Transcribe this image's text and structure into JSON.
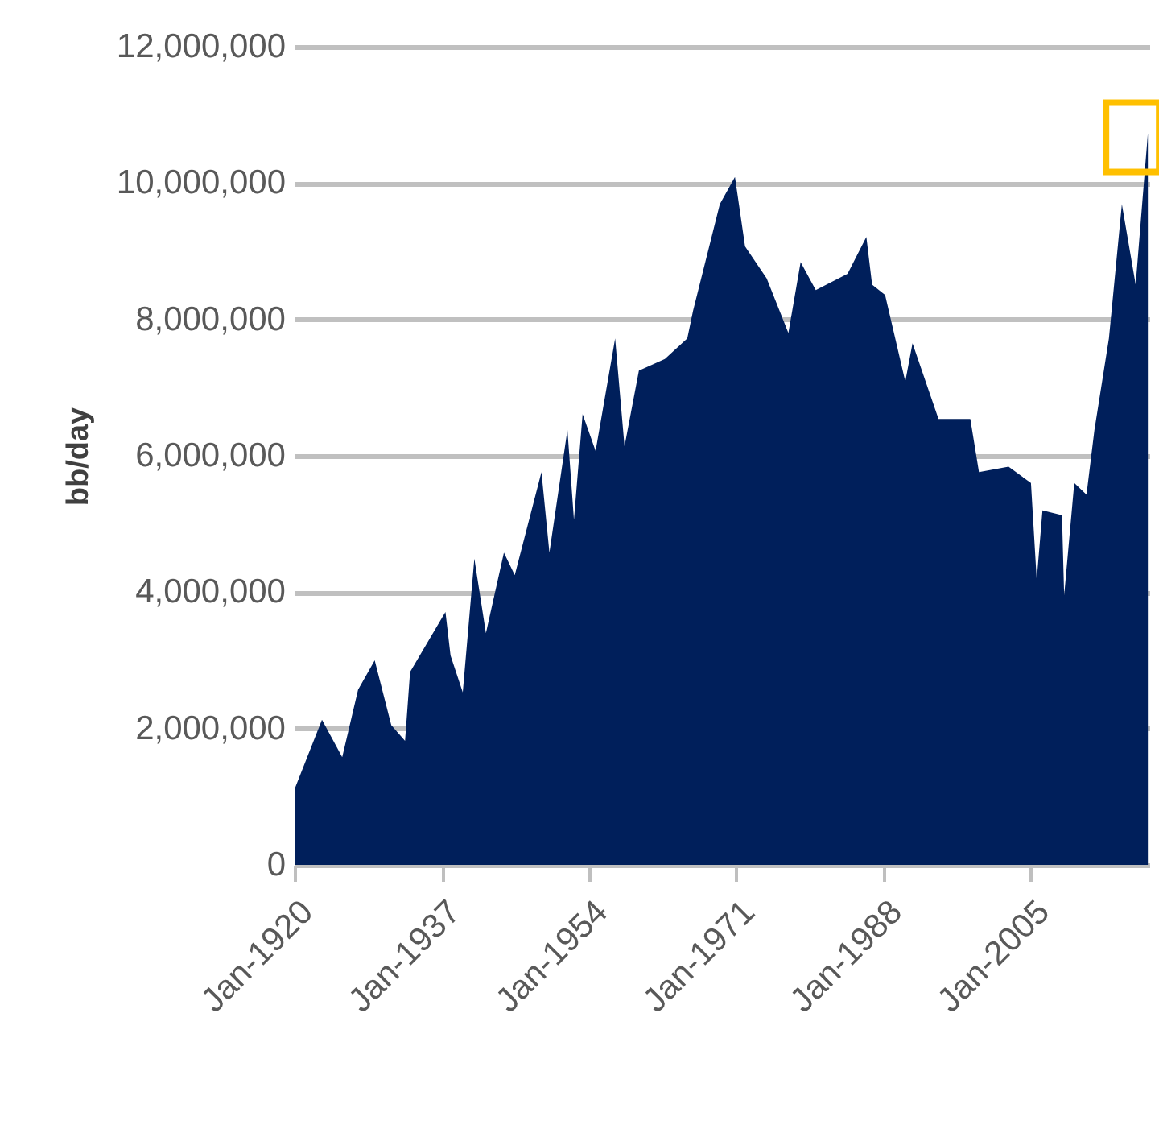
{
  "chart_data": {
    "type": "area",
    "ylabel": "bb/day",
    "x": [
      "1920-01",
      "1923-03",
      "1925-07",
      "1927-05",
      "1929-04",
      "1931-03",
      "1932-10",
      "1933-05",
      "1937-06",
      "1938-01",
      "1939-06",
      "1940-10",
      "1942-02",
      "1944-03",
      "1945-06",
      "1948-07",
      "1949-06",
      "1951-07",
      "1952-04",
      "1953-04",
      "1954-10",
      "1957-01",
      "1958-02",
      "1959-10",
      "1962-10",
      "1965-05",
      "1966-01",
      "1969-02",
      "1970-11",
      "1972-01",
      "1974-07",
      "1977-01",
      "1978-06",
      "1980-03",
      "1983-11",
      "1986-01",
      "1986-09",
      "1988-03",
      "1990-07",
      "1991-05",
      "1994-05",
      "1998-01",
      "1999-01",
      "2002-06",
      "2005-01",
      "2005-09",
      "2006-05",
      "2008-08",
      "2008-11",
      "2010-01",
      "2011-06",
      "2012-05",
      "2014-01",
      "2015-07",
      "2017-02",
      "2018-07"
    ],
    "series": [
      {
        "color": "#001f5b",
        "values": [
          1110000,
          2130000,
          1580000,
          2570000,
          3000000,
          2050000,
          1820000,
          2830000,
          3710000,
          3070000,
          2530000,
          4490000,
          3400000,
          4580000,
          4250000,
          5760000,
          4580000,
          6380000,
          5060000,
          6610000,
          6070000,
          7720000,
          6140000,
          7250000,
          7420000,
          7720000,
          8130000,
          9690000,
          10090000,
          9070000,
          8600000,
          7800000,
          8840000,
          8430000,
          8670000,
          9210000,
          8510000,
          8360000,
          7090000,
          7650000,
          6540000,
          6540000,
          5760000,
          5840000,
          5600000,
          4180000,
          5200000,
          5130000,
          3950000,
          5600000,
          5430000,
          6380000,
          7720000,
          9690000,
          8510000,
          10730000
        ]
      }
    ],
    "xlim": [
      "1920-01",
      "2018-09"
    ],
    "xticks": [
      {
        "value": "1920-01",
        "label": "Jan-1920"
      },
      {
        "value": "1937-01",
        "label": "Jan-1937"
      },
      {
        "value": "1954-01",
        "label": "Jan-1954"
      },
      {
        "value": "1971-01",
        "label": "Jan-1971"
      },
      {
        "value": "1988-01",
        "label": "Jan-1988"
      },
      {
        "value": "2005-01",
        "label": "Jan-2005"
      }
    ],
    "ylim": [
      0,
      12000000
    ],
    "yticks": [
      {
        "value": 0,
        "label": "0"
      },
      {
        "value": 2000000,
        "label": "2,000,000"
      },
      {
        "value": 4000000,
        "label": "4,000,000"
      },
      {
        "value": 6000000,
        "label": "6,000,000"
      },
      {
        "value": 8000000,
        "label": "8,000,000"
      },
      {
        "value": 10000000,
        "label": "10,000,000"
      },
      {
        "value": 12000000,
        "label": "12,000,000"
      }
    ],
    "grid": "y"
  }
}
